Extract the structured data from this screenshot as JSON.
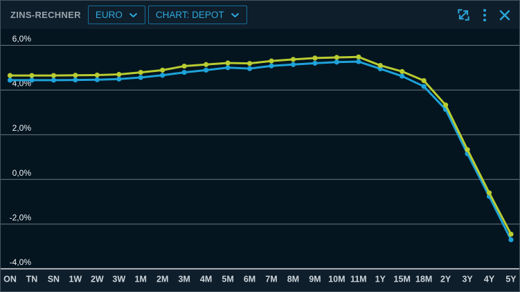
{
  "header": {
    "title": "ZINS-RECHNER",
    "dropdowns": [
      {
        "label": "EURO"
      },
      {
        "label": "CHART: DEPOT"
      }
    ],
    "icons": [
      "expand-icon",
      "kebab-menu-icon",
      "close-icon"
    ]
  },
  "colors": {
    "widget_bg": "#0f1e2b",
    "plot_bg": "#041520",
    "border": "#47545f",
    "accent_cyan": "#2aa2d6",
    "dropdown_border": "#156f9b",
    "dropdown_text": "#2fa9dc",
    "title_text": "#9aa3ac",
    "grid": "#b6bec5",
    "axis": "#eef2f5",
    "series_yellow": "#b9cc31",
    "series_blue": "#1ea2d9",
    "x_label": "#ccd4da",
    "y_label": "#eef2f5"
  },
  "chart_data": {
    "type": "line",
    "title": "",
    "xlabel": "",
    "ylabel": "",
    "categories": [
      "ON",
      "TN",
      "SN",
      "1W",
      "2W",
      "3W",
      "1M",
      "2M",
      "3M",
      "4M",
      "5M",
      "6M",
      "7M",
      "8M",
      "9M",
      "10M",
      "11M",
      "1Y",
      "15M",
      "18M",
      "2Y",
      "3Y",
      "4Y",
      "5Y"
    ],
    "series": [
      {
        "name": "blue",
        "color": "#1ea2d9",
        "values": [
          4.44,
          4.44,
          4.44,
          4.45,
          4.46,
          4.49,
          4.56,
          4.66,
          4.79,
          4.89,
          5.0,
          4.96,
          5.08,
          5.14,
          5.2,
          5.25,
          5.27,
          4.95,
          4.62,
          4.16,
          3.13,
          1.15,
          -0.76,
          -2.7
        ]
      },
      {
        "name": "yellow",
        "color": "#b9cc31",
        "values": [
          4.65,
          4.65,
          4.65,
          4.66,
          4.67,
          4.7,
          4.79,
          4.89,
          5.07,
          5.14,
          5.21,
          5.19,
          5.3,
          5.37,
          5.43,
          5.46,
          5.48,
          5.1,
          4.83,
          4.42,
          3.33,
          1.33,
          -0.6,
          -2.45
        ]
      }
    ],
    "y_ticks": [
      {
        "label": "6,0%",
        "value": 6
      },
      {
        "label": "4,0%",
        "value": 4
      },
      {
        "label": "2,0%",
        "value": 2
      },
      {
        "label": "0,0%",
        "value": 0
      },
      {
        "label": "-2,0%",
        "value": -2
      },
      {
        "label": "-4,0%",
        "value": -4
      }
    ],
    "ylim": [
      -5.0,
      6.7
    ],
    "grid": "horizontal",
    "legend": "none"
  }
}
